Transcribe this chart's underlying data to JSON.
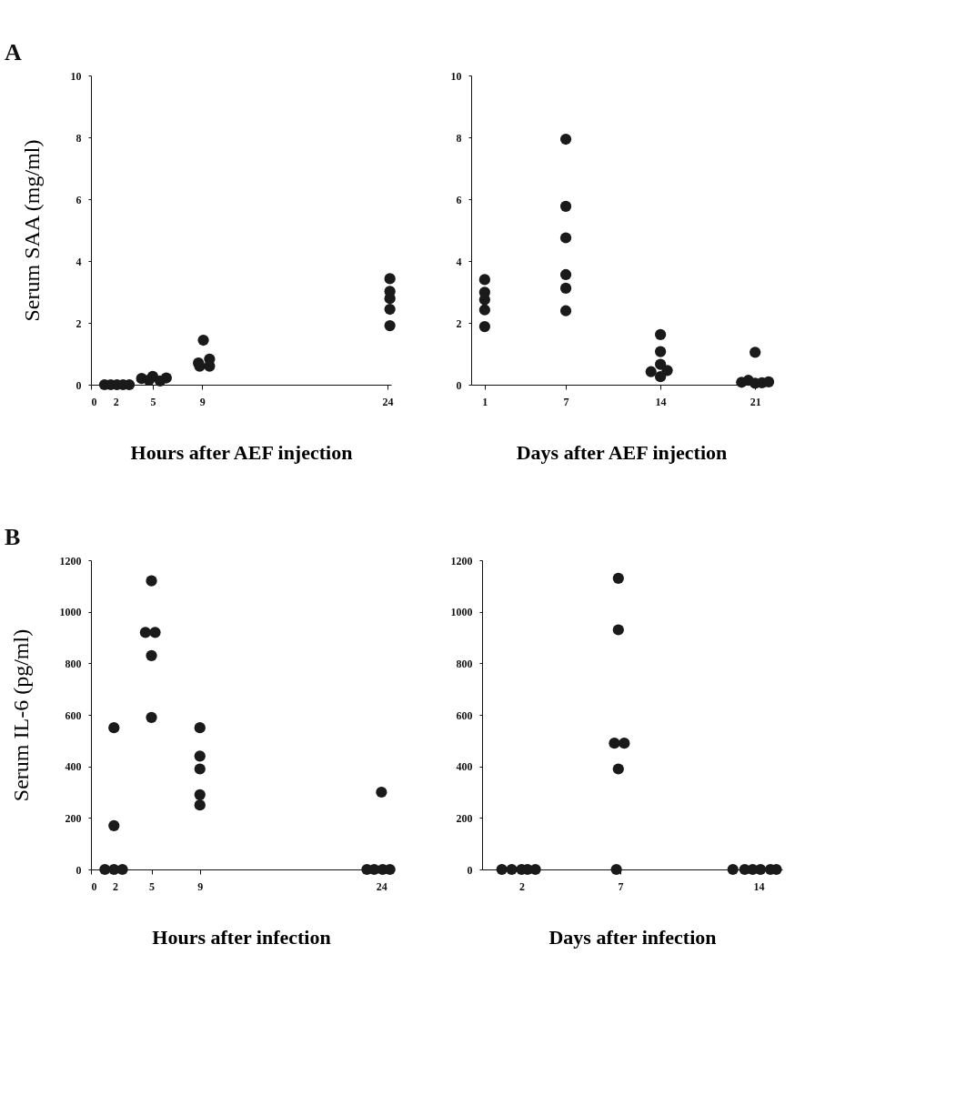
{
  "chart_data": [
    {
      "type": "scatter",
      "annotations": [
        "A"
      ],
      "xlabel": "Hours after AEF injection",
      "ylabel": "Serum SAA (mg/ml)",
      "xlim": [
        0,
        24.3
      ],
      "xticks": [
        0,
        2,
        5,
        9,
        24
      ],
      "ylim": [
        0,
        10
      ],
      "yticks": [
        0,
        2,
        4,
        6,
        8,
        10
      ],
      "grid": false,
      "marker": "circle",
      "series": [
        {
          "color": "#1a1a1a",
          "x": [
            1.1,
            1.6,
            2.1,
            2.6,
            3.1,
            4.1,
            4.7,
            5.0,
            5.6,
            6.1,
            8.7,
            8.8,
            9.1,
            9.6,
            9.6,
            24.2,
            24.2,
            24.2,
            24.2,
            24.2
          ],
          "values": [
            0,
            0,
            0,
            0,
            0,
            0.2,
            0.15,
            0.27,
            0.12,
            0.22,
            0.7,
            0.6,
            1.44,
            0.83,
            0.6,
            3.43,
            3.02,
            2.79,
            2.44,
            1.91
          ]
        }
      ]
    },
    {
      "type": "scatter",
      "xlabel": "Days after AEF injection",
      "xlim": [
        0,
        22.2
      ],
      "xticks": [
        1,
        7,
        14,
        21
      ],
      "ylim": [
        0,
        10
      ],
      "yticks": [
        0,
        2,
        4,
        6,
        8,
        10
      ],
      "grid": false,
      "marker": "circle",
      "series": [
        {
          "color": "#1a1a1a",
          "x": [
            1,
            1,
            1,
            1,
            1,
            7,
            7,
            7,
            7,
            7,
            7,
            14,
            14,
            14,
            13.3,
            14.5,
            14,
            21,
            20,
            20.5,
            21,
            21.5,
            22
          ],
          "values": [
            3.4,
            2.99,
            2.75,
            2.42,
            1.88,
            7.94,
            5.77,
            4.75,
            3.56,
            3.12,
            2.39,
            1.62,
            1.07,
            0.66,
            0.42,
            0.46,
            0.26,
            1.05,
            0.08,
            0.14,
            0.05,
            0.06,
            0.09
          ]
        }
      ]
    },
    {
      "type": "scatter",
      "annotations": [
        "B"
      ],
      "xlabel": "Hours after infection",
      "ylabel": "Serum IL-6 (pg/ml)",
      "xlim": [
        0,
        24.8
      ],
      "xticks": [
        0,
        2,
        5,
        9,
        24
      ],
      "ylim": [
        0,
        1200
      ],
      "yticks": [
        0,
        200,
        400,
        600,
        800,
        1000,
        1200
      ],
      "grid": false,
      "marker": "circle",
      "series": [
        {
          "color": "#1a1a1a",
          "x": [
            1.15,
            1.9,
            2.6,
            1.9,
            1.9,
            5.0,
            4.5,
            5.3,
            5.0,
            5.0,
            9,
            9,
            9,
            9,
            9,
            24,
            22.8,
            23.4,
            24.1,
            24.7
          ],
          "values": [
            0,
            0,
            0,
            550,
            170,
            1120,
            920,
            920,
            830,
            590,
            550,
            440,
            390,
            290,
            250,
            300,
            0,
            0,
            0,
            0
          ]
        }
      ]
    },
    {
      "type": "scatter",
      "xlabel": "Days after infection",
      "xlim": [
        0,
        15.2
      ],
      "xticks": [
        2,
        7,
        14
      ],
      "ylim": [
        0,
        1200
      ],
      "yticks": [
        0,
        200,
        400,
        600,
        800,
        1000,
        1200
      ],
      "grid": false,
      "marker": "circle",
      "series": [
        {
          "color": "#1a1a1a",
          "x": [
            1.0,
            1.5,
            2.0,
            2.3,
            2.7,
            6.9,
            6.9,
            6.7,
            7.2,
            6.9,
            6.8,
            12.7,
            13.3,
            13.7,
            14.1,
            14.6,
            14.9
          ],
          "values": [
            0,
            0,
            0,
            0,
            0,
            1130,
            930,
            490,
            490,
            390,
            0,
            0,
            0,
            0,
            0,
            0,
            0
          ]
        }
      ]
    }
  ]
}
